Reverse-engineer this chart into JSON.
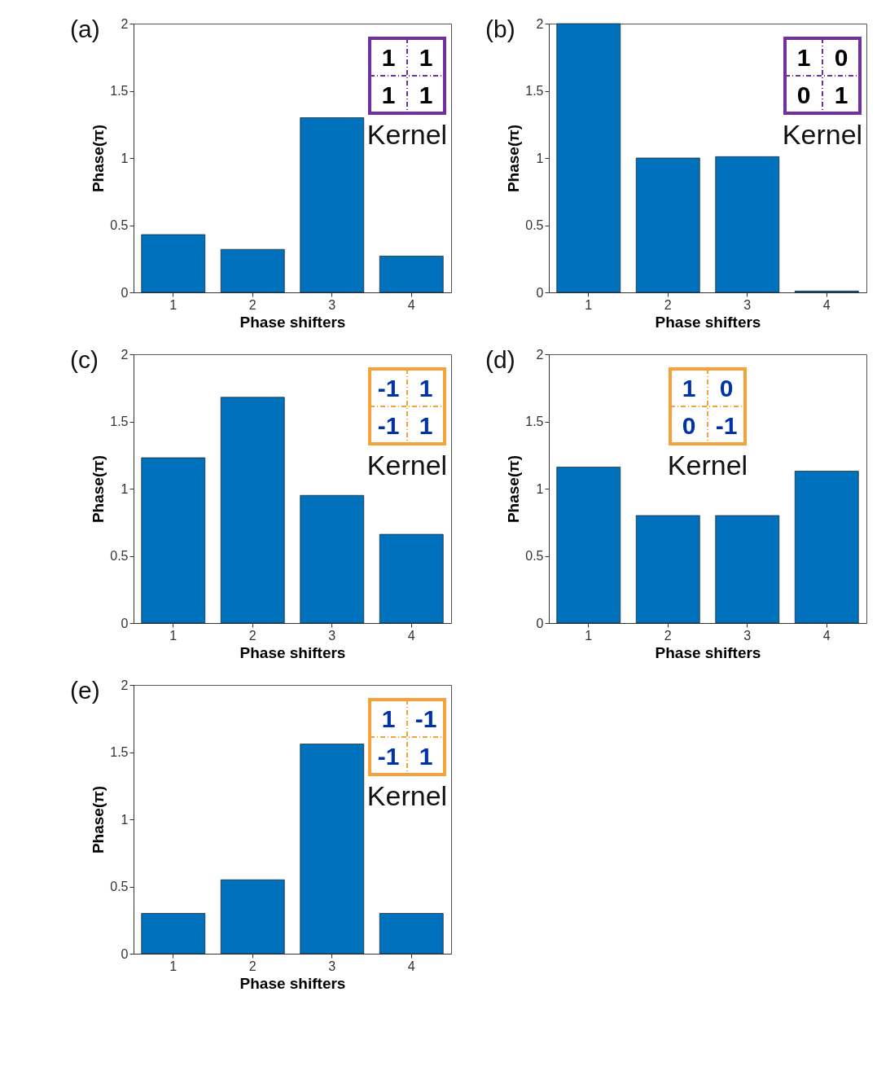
{
  "chart_data": [
    {
      "type": "bar",
      "categories": [
        "1",
        "2",
        "3",
        "4"
      ],
      "values": [
        0.43,
        0.32,
        1.3,
        0.27
      ],
      "color": "#0072bd",
      "xlabel": "Phase shifters",
      "ylabel": "Phase(π)",
      "ylim": [
        0,
        2
      ],
      "yticks": [
        0,
        0.5,
        1,
        1.5,
        2
      ],
      "annotations": [
        "(a)",
        "1",
        "1",
        "1",
        "1",
        "Kernel"
      ]
    },
    {
      "type": "bar",
      "categories": [
        "1",
        "2",
        "3",
        "4"
      ],
      "values": [
        2.0,
        1.0,
        1.01,
        0.01
      ],
      "color": "#0072bd",
      "xlabel": "Phase shifters",
      "ylabel": "Phase(π)",
      "ylim": [
        0,
        2
      ],
      "yticks": [
        0,
        0.5,
        1,
        1.5,
        2
      ],
      "annotations": [
        "(b)",
        "1",
        "0",
        "0",
        "1",
        "Kernel"
      ]
    },
    {
      "type": "bar",
      "categories": [
        "1",
        "2",
        "3",
        "4"
      ],
      "values": [
        1.23,
        1.68,
        0.95,
        0.66
      ],
      "color": "#0072bd",
      "xlabel": "Phase shifters",
      "ylabel": "Phase(π)",
      "ylim": [
        0,
        2
      ],
      "yticks": [
        0,
        0.5,
        1,
        1.5,
        2
      ],
      "annotations": [
        "(c)",
        "-1",
        "1",
        "-1",
        "1",
        "Kernel"
      ]
    },
    {
      "type": "bar",
      "categories": [
        "1",
        "2",
        "3",
        "4"
      ],
      "values": [
        1.16,
        0.8,
        0.8,
        1.13
      ],
      "color": "#0072bd",
      "xlabel": "Phase shifters",
      "ylabel": "Phase(π)",
      "ylim": [
        0,
        2
      ],
      "yticks": [
        0,
        0.5,
        1,
        1.5,
        2
      ],
      "annotations": [
        "(d)",
        "1",
        "0",
        "0",
        "-1",
        "Kernel"
      ]
    },
    {
      "type": "bar",
      "categories": [
        "1",
        "2",
        "3",
        "4"
      ],
      "values": [
        0.3,
        0.55,
        1.56,
        0.3
      ],
      "color": "#0072bd",
      "xlabel": "Phase shifters",
      "ylabel": "Phase(π)",
      "ylim": [
        0,
        2
      ],
      "yticks": [
        0,
        0.5,
        1,
        1.5,
        2
      ],
      "annotations": [
        "(e)",
        "1",
        "-1",
        "-1",
        "1",
        "Kernel"
      ]
    }
  ]
}
